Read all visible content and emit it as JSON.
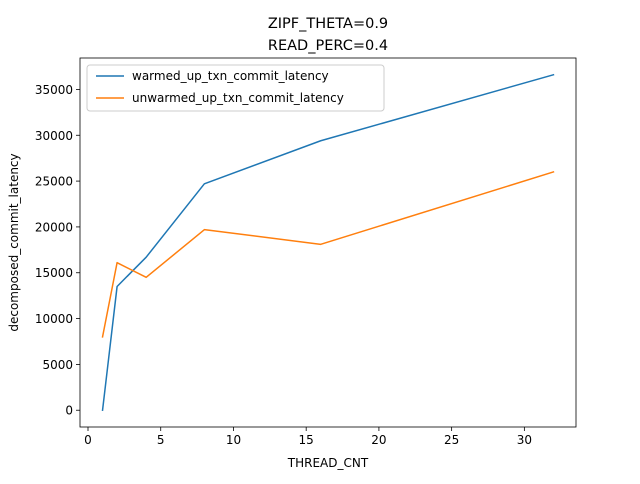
{
  "chart_data": {
    "type": "line",
    "title": "ZIPF_THETA=0.9",
    "subtitle": "READ_PERC=0.4",
    "xlabel": "THREAD_CNT",
    "ylabel": "decomposed_commit_latency",
    "xlim": [
      -0.55,
      33.55
    ],
    "ylim": [
      -1830,
      38430
    ],
    "x_ticks": [
      0,
      5,
      10,
      15,
      20,
      25,
      30
    ],
    "y_ticks": [
      0,
      5000,
      10000,
      15000,
      20000,
      25000,
      30000,
      35000
    ],
    "grid": false,
    "legend_position": "top-left",
    "x": [
      1,
      2,
      4,
      8,
      16,
      32
    ],
    "series": [
      {
        "name": "warmed_up_txn_commit_latency",
        "color": "#1f77b4",
        "values": [
          0,
          13500,
          16700,
          24700,
          29400,
          36600
        ]
      },
      {
        "name": "unwarmed_up_txn_commit_latency",
        "color": "#ff7f0e",
        "values": [
          8000,
          16100,
          14500,
          19700,
          18100,
          26000
        ]
      }
    ]
  }
}
